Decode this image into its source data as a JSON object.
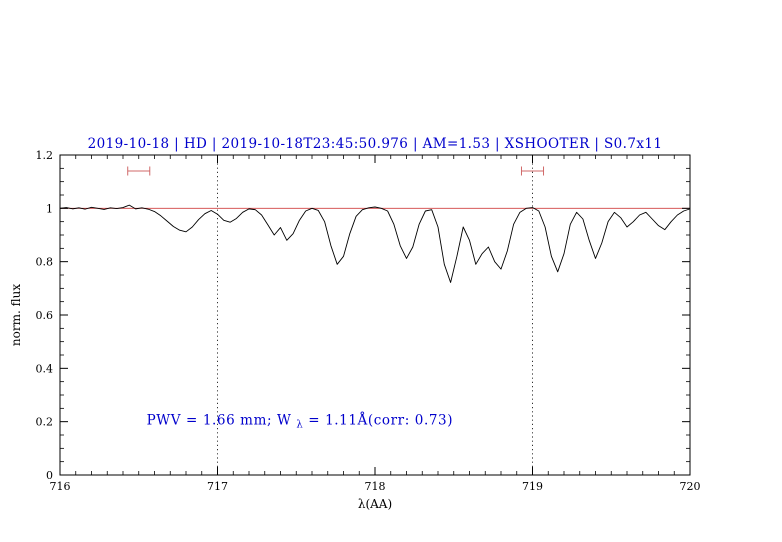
{
  "page": {
    "background": "#ffffff"
  },
  "chart_data": {
    "type": "line",
    "title": "2019-10-18 | HD | 2019-10-18T23:45:50.976 | AM=1.53 | XSHOOTER | S0.7x11",
    "title_color": "#0000cc",
    "xlabel": "λ(AA)",
    "ylabel": "norm. flux",
    "xlim": [
      716,
      720
    ],
    "ylim": [
      0,
      1.2
    ],
    "x_major_ticks": [
      716,
      717,
      718,
      719,
      720
    ],
    "x_tick_labels": [
      "716",
      "717",
      "718",
      "719",
      "720"
    ],
    "x_minor_step": 0.1,
    "y_major_ticks": [
      0,
      0.2,
      0.4,
      0.6,
      0.8,
      1,
      1.2
    ],
    "y_tick_labels": [
      "0",
      "0.2",
      "0.4",
      "0.6",
      "0.8",
      "1",
      "1.2"
    ],
    "y_minor_step": 0.05,
    "dotted_vlines": [
      717,
      719
    ],
    "continuum_line": {
      "y": 1.0,
      "color": "#d04040"
    },
    "window_markers": [
      {
        "x_center": 716.5,
        "half_width": 0.07,
        "y": 1.14
      },
      {
        "x_center": 719.0,
        "half_width": 0.07,
        "y": 1.14
      }
    ],
    "marker_color": "#d06868",
    "annotation": {
      "text_pre": "PWV = 1.66 mm; W",
      "text_sub": "λ",
      "text_post": " = 1.11Å(corr: 0.73)",
      "x": 716.55,
      "y": 0.19,
      "color": "#0000cc"
    },
    "series": [
      {
        "name": "spectrum",
        "color": "#000000",
        "points": [
          [
            716.0,
            1.0
          ],
          [
            716.04,
            1.003
          ],
          [
            716.08,
            0.998
          ],
          [
            716.12,
            1.002
          ],
          [
            716.16,
            0.997
          ],
          [
            716.2,
            1.004
          ],
          [
            716.24,
            1.0
          ],
          [
            716.28,
            0.996
          ],
          [
            716.32,
            1.002
          ],
          [
            716.36,
            0.999
          ],
          [
            716.4,
            1.003
          ],
          [
            716.44,
            1.012
          ],
          [
            716.48,
            0.998
          ],
          [
            716.52,
            1.002
          ],
          [
            716.56,
            0.997
          ],
          [
            716.6,
            0.988
          ],
          [
            716.64,
            0.972
          ],
          [
            716.68,
            0.952
          ],
          [
            716.72,
            0.932
          ],
          [
            716.76,
            0.918
          ],
          [
            716.8,
            0.912
          ],
          [
            716.84,
            0.93
          ],
          [
            716.88,
            0.958
          ],
          [
            716.92,
            0.98
          ],
          [
            716.96,
            0.992
          ],
          [
            717.0,
            0.978
          ],
          [
            717.04,
            0.955
          ],
          [
            717.08,
            0.948
          ],
          [
            717.12,
            0.962
          ],
          [
            717.16,
            0.985
          ],
          [
            717.2,
            0.998
          ],
          [
            717.24,
            0.995
          ],
          [
            717.28,
            0.975
          ],
          [
            717.32,
            0.938
          ],
          [
            717.36,
            0.9
          ],
          [
            717.4,
            0.928
          ],
          [
            717.44,
            0.88
          ],
          [
            717.48,
            0.905
          ],
          [
            717.52,
            0.955
          ],
          [
            717.56,
            0.99
          ],
          [
            717.6,
            1.0
          ],
          [
            717.64,
            0.992
          ],
          [
            717.68,
            0.95
          ],
          [
            717.72,
            0.86
          ],
          [
            717.76,
            0.79
          ],
          [
            717.8,
            0.82
          ],
          [
            717.84,
            0.905
          ],
          [
            717.88,
            0.97
          ],
          [
            717.92,
            0.995
          ],
          [
            717.96,
            1.002
          ],
          [
            718.0,
            1.005
          ],
          [
            718.04,
            1.0
          ],
          [
            718.08,
            0.99
          ],
          [
            718.12,
            0.94
          ],
          [
            718.16,
            0.86
          ],
          [
            718.2,
            0.812
          ],
          [
            718.24,
            0.855
          ],
          [
            718.28,
            0.94
          ],
          [
            718.32,
            0.99
          ],
          [
            718.36,
            0.995
          ],
          [
            718.4,
            0.93
          ],
          [
            718.44,
            0.79
          ],
          [
            718.48,
            0.722
          ],
          [
            718.52,
            0.82
          ],
          [
            718.56,
            0.93
          ],
          [
            718.6,
            0.88
          ],
          [
            718.64,
            0.79
          ],
          [
            718.68,
            0.83
          ],
          [
            718.72,
            0.855
          ],
          [
            718.76,
            0.8
          ],
          [
            718.8,
            0.772
          ],
          [
            718.84,
            0.84
          ],
          [
            718.88,
            0.94
          ],
          [
            718.92,
            0.985
          ],
          [
            718.96,
            1.0
          ],
          [
            719.0,
            1.003
          ],
          [
            719.04,
            0.99
          ],
          [
            719.08,
            0.93
          ],
          [
            719.12,
            0.82
          ],
          [
            719.16,
            0.762
          ],
          [
            719.2,
            0.83
          ],
          [
            719.24,
            0.94
          ],
          [
            719.28,
            0.985
          ],
          [
            719.32,
            0.96
          ],
          [
            719.36,
            0.88
          ],
          [
            719.4,
            0.812
          ],
          [
            719.44,
            0.87
          ],
          [
            719.48,
            0.95
          ],
          [
            719.52,
            0.985
          ],
          [
            719.56,
            0.965
          ],
          [
            719.6,
            0.93
          ],
          [
            719.64,
            0.95
          ],
          [
            719.68,
            0.975
          ],
          [
            719.72,
            0.985
          ],
          [
            719.76,
            0.96
          ],
          [
            719.8,
            0.935
          ],
          [
            719.84,
            0.92
          ],
          [
            719.88,
            0.95
          ],
          [
            719.92,
            0.975
          ],
          [
            719.96,
            0.99
          ],
          [
            720.0,
            0.998
          ]
        ]
      }
    ]
  }
}
